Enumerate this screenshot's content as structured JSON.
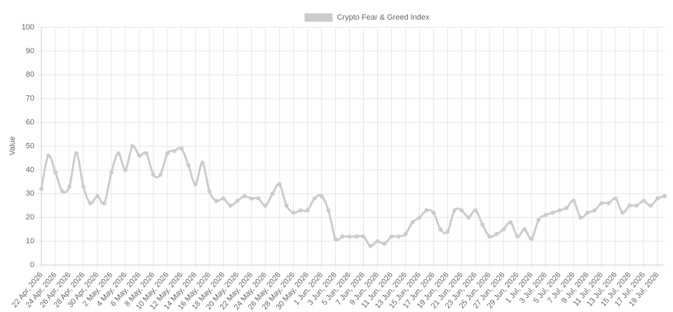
{
  "chart_data": {
    "type": "line",
    "y_label": "Value",
    "categories": [
      "22 Apr, 2026",
      null,
      "24 Apr, 2026",
      null,
      "26 Apr, 2026",
      null,
      "28 Apr, 2026",
      null,
      "30 Apr, 2026",
      null,
      "2 May, 2026",
      null,
      "4 May, 2026",
      null,
      "6 May, 2026",
      null,
      "8 May, 2026",
      null,
      "10 May, 2026",
      null,
      "12 May, 2026",
      null,
      "14 May, 2026",
      null,
      "16 May, 2026",
      null,
      "18 May, 2026",
      null,
      "20 May, 2026",
      null,
      "22 May, 2026",
      null,
      "24 May, 2026",
      null,
      "26 May, 2026",
      null,
      "28 May, 2026",
      null,
      "30 May, 2026",
      null,
      "1 Jun, 2026",
      null,
      "3 Jun, 2026",
      null,
      "5 Jun, 2026",
      null,
      "7 Jun, 2026",
      null,
      "9 Jun, 2026",
      null,
      "11 Jun, 2026",
      null,
      "13 Jun, 2026",
      null,
      "15 Jun, 2026",
      null,
      "17 Jun, 2026",
      null,
      "19 Jun, 2026",
      null,
      "21 Jun, 2026",
      null,
      "23 Jun, 2026",
      null,
      "25 Jun, 2026",
      null,
      "27 Jun, 2026",
      null,
      "29 Jun, 2026",
      null,
      "1 Jul, 2026",
      null,
      "3 Jul, 2026",
      null,
      "5 Jul, 2026",
      null,
      "7 Jul, 2026",
      null,
      "9 Jul, 2026",
      null,
      "11 Jul, 2026",
      null,
      "13 Jul, 2026",
      null,
      "15 Jul, 2026",
      null,
      "17 Jul, 2026",
      null,
      "19 Jul, 2026",
      null
    ],
    "series": [
      {
        "name": "Crypto Fear & Greed Index",
        "color": "#cccccc",
        "values": [
          32,
          46,
          39,
          31,
          33,
          47,
          33,
          26,
          29,
          26,
          39,
          47,
          40,
          50,
          46,
          47,
          38,
          38,
          47,
          48,
          49,
          42,
          34,
          43,
          31,
          27,
          28,
          25,
          27,
          29,
          28,
          28,
          25,
          30,
          34,
          25,
          22,
          23,
          23,
          28,
          29,
          23,
          11,
          12,
          12,
          12,
          12,
          8,
          10,
          9,
          12,
          12,
          13,
          18,
          20,
          23,
          22,
          15,
          14,
          23,
          23,
          20,
          23,
          17,
          12,
          13,
          15,
          18,
          12,
          15,
          11,
          19,
          21,
          22,
          23,
          24,
          27,
          20,
          22,
          23,
          26,
          26,
          28,
          22,
          25,
          25,
          27,
          25,
          28,
          29
        ]
      }
    ],
    "ylim": [
      0,
      100
    ],
    "yticks": [
      0,
      10,
      20,
      30,
      40,
      50,
      60,
      70,
      80,
      90,
      100
    ],
    "grid": true,
    "legend": "top"
  }
}
